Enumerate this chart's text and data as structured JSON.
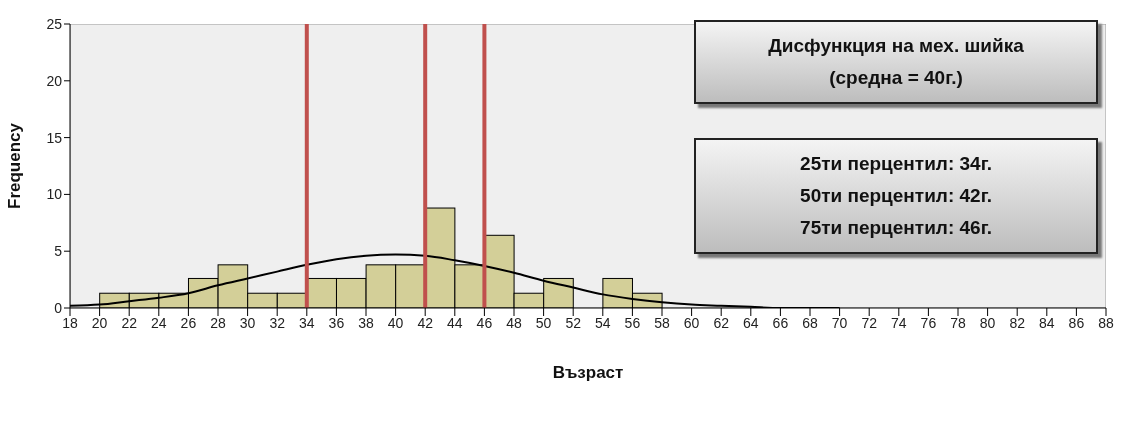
{
  "chart_data": {
    "type": "histogram",
    "xlabel": "Възраст",
    "ylabel": "Frequency",
    "series": [
      {
        "color": "#d3cf98",
        "bins": [
          18,
          20,
          22,
          24,
          26,
          28,
          30,
          32,
          34,
          36,
          38,
          40,
          42,
          44,
          46,
          48,
          50,
          52,
          54,
          56,
          58,
          60,
          62,
          64,
          66,
          68,
          70,
          72,
          74,
          76,
          78,
          80,
          82,
          84,
          86,
          88
        ],
        "values": [
          0,
          1.3,
          1.3,
          1.3,
          2.6,
          3.8,
          1.3,
          1.3,
          2.6,
          2.6,
          3.8,
          3.8,
          8.8,
          3.8,
          6.4,
          1.3,
          2.6,
          0,
          2.6,
          1.3,
          0,
          0,
          0,
          0,
          0,
          0,
          0,
          0,
          0,
          0,
          0,
          0,
          0,
          0,
          0
        ]
      },
      {
        "type": "line",
        "color": "#000000",
        "x": [
          18,
          20,
          22,
          24,
          26,
          28,
          30,
          32,
          34,
          36,
          38,
          40,
          42,
          44,
          46,
          48,
          50,
          52,
          54,
          56,
          58,
          60,
          62,
          64,
          66,
          68,
          70
        ],
        "values": [
          0.2,
          0.3,
          0.6,
          0.9,
          1.3,
          2.0,
          2.6,
          3.2,
          3.8,
          4.3,
          4.6,
          4.7,
          4.6,
          4.2,
          3.7,
          3.1,
          2.4,
          1.8,
          1.2,
          0.8,
          0.5,
          0.3,
          0.2,
          0.1,
          0,
          0,
          0
        ]
      }
    ],
    "xlim": [
      18,
      88
    ],
    "xticks": [
      18,
      20,
      22,
      24,
      26,
      28,
      30,
      32,
      34,
      36,
      38,
      40,
      42,
      44,
      46,
      48,
      50,
      52,
      54,
      56,
      58,
      60,
      62,
      64,
      66,
      68,
      70,
      72,
      74,
      76,
      78,
      80,
      82,
      84,
      86,
      88
    ],
    "ylim": [
      0,
      25
    ],
    "yticks": [
      0,
      5,
      10,
      15,
      20,
      25
    ],
    "ref_lines": [
      {
        "axis": "x",
        "value": 34,
        "color": "#c0504d"
      },
      {
        "axis": "x",
        "value": 42,
        "color": "#c0504d"
      },
      {
        "axis": "x",
        "value": 46,
        "color": "#c0504d"
      }
    ],
    "annotations": [
      "Дисфункция на мех. шийка\n(средна = 40г.)",
      "25ти перцентил: 34г.\n50ти перцентил: 42г.\n75ти перцентил: 46г."
    ]
  }
}
